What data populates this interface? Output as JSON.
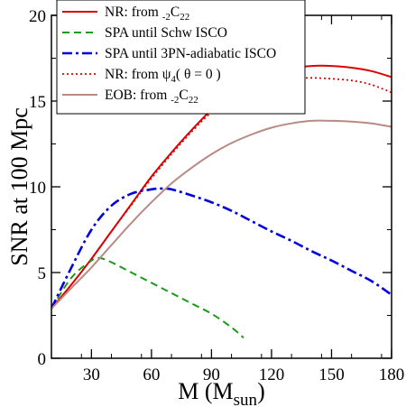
{
  "chart_data": {
    "type": "line",
    "xlabel": "M (M",
    "xlabel_sub": "sun",
    "xlabel_close": ")",
    "ylabel": "SNR at 100 Mpc",
    "xlim": [
      10,
      180
    ],
    "ylim": [
      0,
      20
    ],
    "xticks": [
      30,
      60,
      90,
      120,
      150,
      180
    ],
    "yticks": [
      0,
      5,
      10,
      15,
      20
    ],
    "grid": false,
    "legend_position": "top-left",
    "series": [
      {
        "name": "NR: from -2C22",
        "color": "#dd0000",
        "dash": "solid",
        "x": [
          10,
          20,
          30,
          40,
          50,
          60,
          70,
          80,
          90,
          100,
          110,
          120,
          130,
          140,
          150,
          160,
          170,
          180
        ],
        "y": [
          2.9,
          4.3,
          5.8,
          7.4,
          9.0,
          10.6,
          12.0,
          13.3,
          14.5,
          15.5,
          16.1,
          16.6,
          16.9,
          17.05,
          17.05,
          16.95,
          16.75,
          16.4
        ]
      },
      {
        "name": "SPA until Schw ISCO",
        "color": "#1a9a1a",
        "dash": "dashed",
        "x": [
          10,
          20,
          30,
          34,
          40,
          50,
          60,
          70,
          80,
          90,
          100,
          106
        ],
        "y": [
          2.9,
          4.7,
          5.7,
          5.85,
          5.6,
          5.0,
          4.4,
          3.8,
          3.2,
          2.6,
          1.8,
          1.2
        ]
      },
      {
        "name": "SPA until 3PN-adiabatic ISCO",
        "color": "#0000dd",
        "dash": "dashdot",
        "x": [
          10,
          20,
          30,
          40,
          50,
          60,
          65,
          70,
          80,
          90,
          100,
          110,
          120,
          130,
          140,
          150,
          160,
          170,
          180
        ],
        "y": [
          2.9,
          5.3,
          7.5,
          8.9,
          9.6,
          9.85,
          9.9,
          9.85,
          9.5,
          9.1,
          8.6,
          8.0,
          7.4,
          6.85,
          6.25,
          5.7,
          5.1,
          4.5,
          3.7
        ]
      },
      {
        "name": "NR: from ψ4(θ=0)",
        "color": "#dd0000",
        "dash": "dotted",
        "x": [
          10,
          20,
          30,
          40,
          50,
          60,
          70,
          80,
          90,
          100,
          110,
          120,
          130,
          140,
          150,
          160,
          170,
          180
        ],
        "y": [
          2.9,
          4.3,
          5.8,
          7.4,
          8.95,
          10.5,
          11.9,
          13.2,
          14.35,
          15.2,
          15.8,
          16.15,
          16.3,
          16.35,
          16.3,
          16.2,
          15.95,
          15.5
        ]
      },
      {
        "name": "EOB: from -2C22",
        "color": "#b88a84",
        "dash": "solid",
        "x": [
          10,
          20,
          30,
          40,
          50,
          60,
          70,
          80,
          90,
          100,
          110,
          120,
          130,
          140,
          150,
          160,
          170,
          180
        ],
        "y": [
          2.9,
          4.1,
          5.3,
          6.6,
          7.9,
          9.1,
          10.2,
          11.1,
          11.9,
          12.55,
          13.05,
          13.45,
          13.7,
          13.85,
          13.85,
          13.8,
          13.7,
          13.5
        ]
      }
    ],
    "legend_labels": [
      {
        "parts": [
          {
            "t": "NR: from "
          },
          {
            "t": "-2",
            "sub": true
          },
          {
            "t": "C"
          },
          {
            "t": "22",
            "sub": true
          }
        ]
      },
      {
        "parts": [
          {
            "t": "SPA until Schw ISCO"
          }
        ]
      },
      {
        "parts": [
          {
            "t": "SPA until 3PN-adiabatic ISCO"
          }
        ]
      },
      {
        "parts": [
          {
            "t": "NR: from ψ"
          },
          {
            "t": "4",
            "sub": true
          },
          {
            "t": "( θ = 0 )"
          }
        ]
      },
      {
        "parts": [
          {
            "t": "EOB: from "
          },
          {
            "t": "-2",
            "sub": true
          },
          {
            "t": "C"
          },
          {
            "t": "22",
            "sub": true
          }
        ]
      }
    ]
  }
}
